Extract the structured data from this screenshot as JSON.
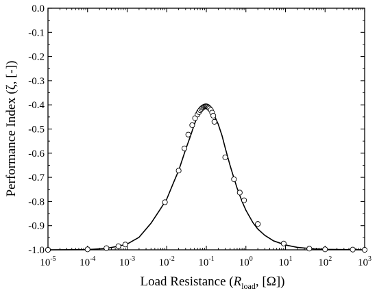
{
  "chart_data": {
    "type": "line",
    "title": "",
    "xlabel": {
      "prefix": "Load Resistance (",
      "var": "R",
      "sub": "load",
      "suffix": ", [Ω])"
    },
    "ylabel": "Performance Index (ζ, [-])",
    "x_scale": "log",
    "xlim": [
      1e-05,
      1000
    ],
    "ylim": [
      -1.0,
      0.0
    ],
    "x_ticks": [
      {
        "base": "10",
        "exp": "-5",
        "value": 1e-05
      },
      {
        "base": "10",
        "exp": "-4",
        "value": 0.0001
      },
      {
        "base": "10",
        "exp": "-3",
        "value": 0.001
      },
      {
        "base": "10",
        "exp": "-2",
        "value": 0.01
      },
      {
        "base": "10",
        "exp": "-1",
        "value": 0.1
      },
      {
        "base": "10",
        "exp": "0",
        "value": 1
      },
      {
        "base": "10",
        "exp": "1",
        "value": 10
      },
      {
        "base": "10",
        "exp": "2",
        "value": 100
      },
      {
        "base": "10",
        "exp": "3",
        "value": 1000
      }
    ],
    "y_ticks": [
      "0.0",
      "-0.1",
      "-0.2",
      "-0.3",
      "-0.4",
      "-0.5",
      "-0.6",
      "-0.7",
      "-0.8",
      "-0.9",
      "-1.0"
    ],
    "grid": false,
    "legend": "none",
    "series": [
      {
        "style": "line",
        "color": "#000000",
        "x": [
          1e-05,
          0.0001,
          0.0003,
          0.0006,
          0.001,
          0.002,
          0.004,
          0.007,
          0.01,
          0.015,
          0.02,
          0.03,
          0.04,
          0.05,
          0.06,
          0.07,
          0.08,
          0.09,
          0.1,
          0.11,
          0.12,
          0.14,
          0.16,
          0.2,
          0.25,
          0.3,
          0.4,
          0.5,
          0.6,
          0.8,
          1,
          1.5,
          2,
          3,
          5,
          10,
          20,
          50,
          100,
          300,
          1000
        ],
        "y": [
          -1.0,
          -0.999,
          -0.994,
          -0.985,
          -0.976,
          -0.948,
          -0.89,
          -0.83,
          -0.79,
          -0.72,
          -0.672,
          -0.585,
          -0.528,
          -0.48,
          -0.447,
          -0.426,
          -0.413,
          -0.407,
          -0.406,
          -0.409,
          -0.414,
          -0.427,
          -0.445,
          -0.48,
          -0.528,
          -0.578,
          -0.652,
          -0.704,
          -0.745,
          -0.8,
          -0.836,
          -0.887,
          -0.914,
          -0.94,
          -0.963,
          -0.98,
          -0.99,
          -0.996,
          -0.998,
          -0.999,
          -1.0
        ]
      },
      {
        "style": "markers",
        "marker": "open-circle",
        "color": "#000000",
        "x": [
          5e-06,
          1e-05,
          0.0001,
          0.0003,
          0.0006,
          0.0009,
          0.009,
          0.02,
          0.028,
          0.035,
          0.044,
          0.052,
          0.06,
          0.065,
          0.07,
          0.075,
          0.08,
          0.085,
          0.09,
          0.095,
          0.1,
          0.105,
          0.11,
          0.115,
          0.12,
          0.13,
          0.14,
          0.15,
          0.16,
          0.3,
          0.5,
          0.7,
          0.9,
          2,
          9,
          40,
          100,
          500,
          1000
        ],
        "y": [
          -1.0,
          -1.0,
          -0.998,
          -0.993,
          -0.985,
          -0.978,
          -0.803,
          -0.672,
          -0.58,
          -0.523,
          -0.484,
          -0.455,
          -0.44,
          -0.43,
          -0.422,
          -0.416,
          -0.412,
          -0.409,
          -0.407,
          -0.406,
          -0.406,
          -0.407,
          -0.409,
          -0.412,
          -0.415,
          -0.421,
          -0.432,
          -0.445,
          -0.47,
          -0.617,
          -0.708,
          -0.763,
          -0.795,
          -0.893,
          -0.974,
          -0.995,
          -0.998,
          -0.999,
          -1.0
        ]
      }
    ]
  }
}
